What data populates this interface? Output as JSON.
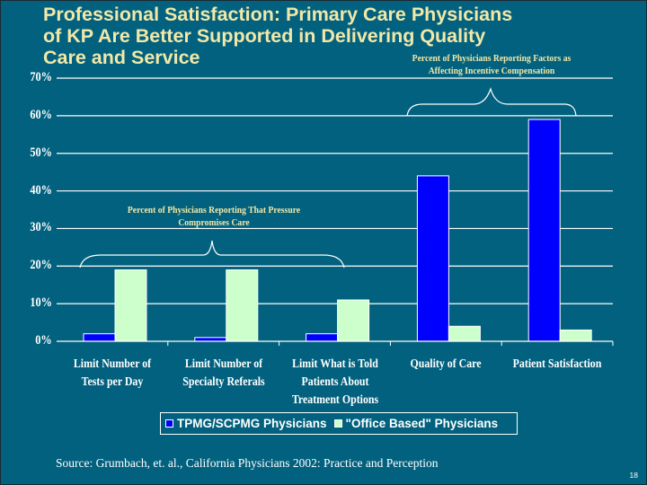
{
  "slide": {
    "title_lines": [
      "Professional Satisfaction:  Primary Care Physicians",
      "of KP Are Better Supported in Delivering Quality",
      "Care and Service"
    ],
    "annotation_right": {
      "line1": "Percent of Physicians Reporting Factors as",
      "line2": "Affecting Incentive Compensation"
    },
    "annotation_left": {
      "line1": "Percent of Physicians Reporting That Pressure",
      "line2": "Compromises Care"
    },
    "source": "Source:  Grumbach, et. al., California Physicians 2002: Practice and Perception",
    "page_number": "18",
    "colors": {
      "background": "#02617E",
      "title": "#F2E8A8",
      "tpmg": "#0000FF",
      "office": "#CCFFCC",
      "grid": "#FFFFFF"
    }
  },
  "chart_data": {
    "type": "bar",
    "title": "Professional Satisfaction: Primary Care Physicians of KP Are Better Supported in Delivering Quality Care and Service",
    "xlabel": "",
    "ylabel": "",
    "ylim": [
      0,
      70
    ],
    "y_ticks": [
      "0%",
      "10%",
      "20%",
      "30%",
      "40%",
      "50%",
      "60%",
      "70%"
    ],
    "grid": true,
    "legend_position": "bottom",
    "categories": [
      [
        "Limit Number of",
        "Tests per Day"
      ],
      [
        "Limit Number of",
        "Specialty Referals"
      ],
      [
        "Limit What is Told",
        "Patients About",
        "Treatment Options"
      ],
      [
        "Quality of Care"
      ],
      [
        "Patient Satisfaction"
      ]
    ],
    "series": [
      {
        "name": "TPMG/SCPMG Physicians",
        "values": [
          2,
          1,
          2,
          44,
          59
        ]
      },
      {
        "name": "\"Office Based\" Physicians",
        "values": [
          19,
          19,
          11,
          4,
          3
        ]
      }
    ],
    "annotations": [
      {
        "text": "Percent of Physicians Reporting That Pressure Compromises Care",
        "spans_categories": [
          0,
          2
        ]
      },
      {
        "text": "Percent of Physicians Reporting Factors as Affecting Incentive Compensation",
        "spans_categories": [
          3,
          4
        ]
      }
    ]
  }
}
